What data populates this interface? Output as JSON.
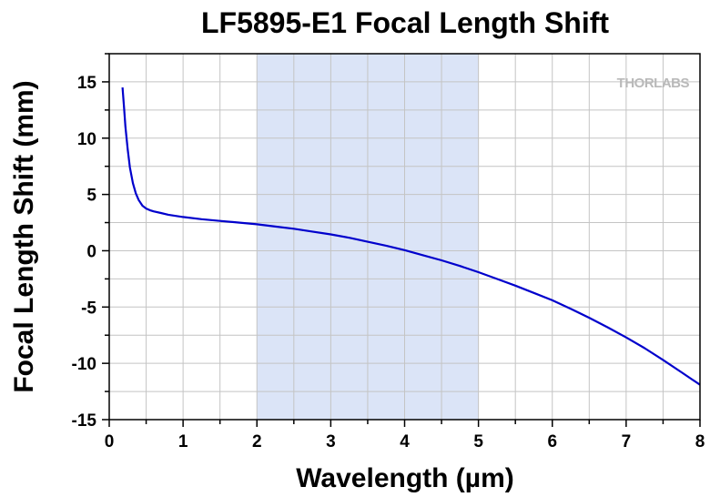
{
  "chart_data": {
    "type": "line",
    "title": "LF5895-E1 Focal Length Shift",
    "xlabel": "Wavelength (µm)",
    "ylabel": "Focal Length Shift (mm)",
    "xlim": [
      0,
      8
    ],
    "ylim": [
      -15,
      17.5
    ],
    "xticks": [
      "0",
      "1",
      "2",
      "3",
      "4",
      "5",
      "6",
      "7",
      "8"
    ],
    "yticks": [
      "15",
      "10",
      "5",
      "0",
      "-5",
      "-10",
      "-15"
    ],
    "grid": true,
    "highlight_band": [
      2,
      5
    ],
    "watermark": "THORLABS",
    "series": [
      {
        "color": "#0000cc",
        "x": [
          0.18,
          0.2,
          0.22,
          0.25,
          0.28,
          0.32,
          0.36,
          0.4,
          0.45,
          0.5,
          0.55,
          0.6,
          0.7,
          0.8,
          1.0,
          1.25,
          1.5,
          1.75,
          2.0,
          2.25,
          2.5,
          2.75,
          3.0,
          3.25,
          3.5,
          3.75,
          4.0,
          4.25,
          4.5,
          4.75,
          5.0,
          5.25,
          5.5,
          5.75,
          6.0,
          6.25,
          6.5,
          6.75,
          7.0,
          7.25,
          7.5,
          7.75,
          8.0
        ],
        "y": [
          14.5,
          12.8,
          11.0,
          9.0,
          7.4,
          6.0,
          5.1,
          4.5,
          4.0,
          3.75,
          3.6,
          3.5,
          3.35,
          3.2,
          3.0,
          2.8,
          2.65,
          2.5,
          2.35,
          2.15,
          1.95,
          1.7,
          1.45,
          1.15,
          0.8,
          0.45,
          0.05,
          -0.4,
          -0.85,
          -1.35,
          -1.9,
          -2.5,
          -3.1,
          -3.75,
          -4.4,
          -5.15,
          -5.95,
          -6.8,
          -7.7,
          -8.65,
          -9.7,
          -10.8,
          -11.9
        ]
      }
    ]
  }
}
